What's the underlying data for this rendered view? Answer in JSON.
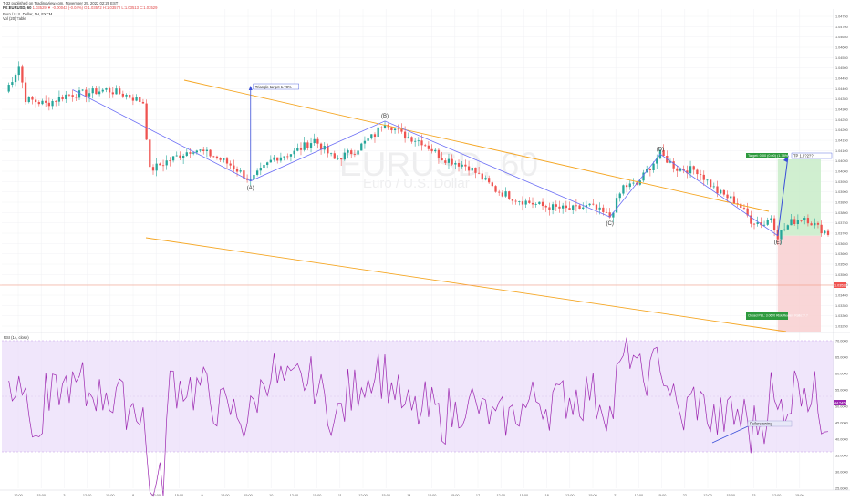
{
  "header": {
    "line1": "T-32 published on TradingView.com, November 29, 2022 02:29 EST",
    "line2": "FX:EURUSD, 60",
    "ohlc": "1.03529 ▼ -0.00043 (-0.04%)  O:1.03572  H:1.03572  L:1.03513  C:1.03529",
    "study1": "Euro / U.S. Dollar, 1H, FXCM",
    "study2": "Vol (20)  Table"
  },
  "watermark": {
    "symbol": "EURUSD, 60",
    "name": "Euro / U.S. Dollar"
  },
  "rsi_label": "RSI (14, close)",
  "colors": {
    "up": "#26a69a",
    "down": "#ef5350",
    "wedge": "#f5a623",
    "wave": "#6b6ef5",
    "target_arrow": "#3a4fd8",
    "rsi_line": "#9c27b0",
    "rsi_band": "#e9dcfa",
    "profit": "#c8ecc8",
    "loss": "#f8cfd0",
    "price_line": "#f28b70"
  },
  "chart_data": {
    "type": "candlestick",
    "ylim": [
      1.03,
      1.0478
    ],
    "y_ticks": [
      "1.04750",
      "1.04700",
      "1.04650",
      "1.04600",
      "1.04550",
      "1.04500",
      "1.04450",
      "1.04400",
      "1.04350",
      "1.04300",
      "1.04250",
      "1.04200",
      "1.04150",
      "1.04100",
      "1.04050",
      "1.04000",
      "1.03950",
      "1.03900",
      "1.03850",
      "1.03800",
      "1.03750",
      "1.03700",
      "1.03650",
      "1.03600",
      "1.03550",
      "1.03500",
      "1.03450",
      "1.03400",
      "1.03350",
      "1.03300",
      "1.03250"
    ],
    "x_ticks": [
      "12:00",
      "15:00",
      "3",
      "12:00",
      "15:00",
      "8",
      "12:00",
      "15:00",
      "9",
      "12:00",
      "15:00",
      "10",
      "12:00",
      "15:00",
      "11",
      "12:00",
      "15:00",
      "14",
      "12:00",
      "15:00",
      "17",
      "12:00",
      "15:00",
      "18",
      "12:00",
      "15:00",
      "21",
      "12:00",
      "15:00",
      "22",
      "12:00",
      "15:00",
      "23",
      "12:00",
      "15:00"
    ],
    "wave_points": [
      {
        "label": "",
        "bar": 20,
        "price": 1.0433
      },
      {
        "label": "(A)",
        "bar": 73,
        "price": 1.0382
      },
      {
        "label": "(B)",
        "bar": 113,
        "price": 1.04155
      },
      {
        "label": "(C)",
        "bar": 180,
        "price": 1.0362
      },
      {
        "label": "(D)",
        "bar": 195,
        "price": 1.0397
      },
      {
        "label": "(E)",
        "bar": 230,
        "price": 1.03515
      }
    ],
    "annotations": {
      "triangle_target": "Triangle target 1.78%",
      "target_box": "Target: 0.00 (0.00) (1.78%)",
      "tp": "TP 1.0?2??",
      "stop_box": "Closed P&L: 3.06?0  Risk/Reward Ratio: ?.?",
      "rsi_note": "Failure swing",
      "current_price": "1.03529"
    },
    "rsi": {
      "ylim": [
        0,
        100
      ],
      "band": [
        30,
        70
      ],
      "ticks": [
        "70.0000",
        "65.0000",
        "60.0000",
        "55.0000",
        "50.0000",
        "45.0000",
        "40.0000",
        "35.0000",
        "30.0000",
        "25.0000"
      ],
      "current": "44.5454"
    }
  }
}
